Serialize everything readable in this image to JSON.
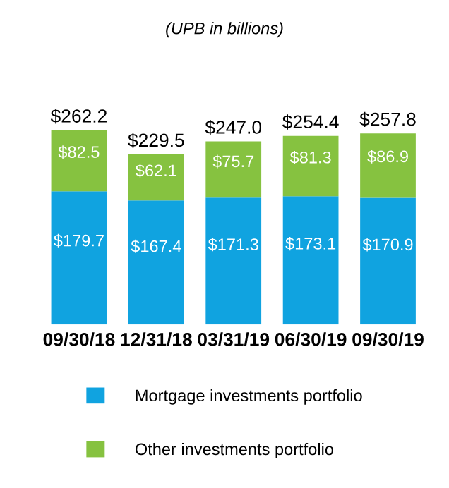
{
  "chart_data": {
    "type": "bar",
    "title": "(UPB in billions)",
    "categories": [
      "09/30/18",
      "12/31/18",
      "03/31/19",
      "06/30/19",
      "09/30/19"
    ],
    "stacked": true,
    "legend": "bottom",
    "series": [
      {
        "name": "Mortgage investments portfolio",
        "color": "#10a3e0",
        "values": [
          179.7,
          167.4,
          171.3,
          173.1,
          170.9
        ],
        "value_labels": [
          "$179.7",
          "$167.4",
          "$171.3",
          "$173.1",
          "$170.9"
        ]
      },
      {
        "name": "Other investments portfolio",
        "color": "#86c240",
        "values": [
          82.5,
          62.1,
          75.7,
          81.3,
          86.9
        ],
        "value_labels": [
          "$82.5",
          "$62.1",
          "$75.7",
          "$81.3",
          "$86.9"
        ]
      }
    ],
    "totals": [
      "$262.2",
      "$229.5",
      "$247.0",
      "$254.4",
      "$257.8"
    ]
  }
}
